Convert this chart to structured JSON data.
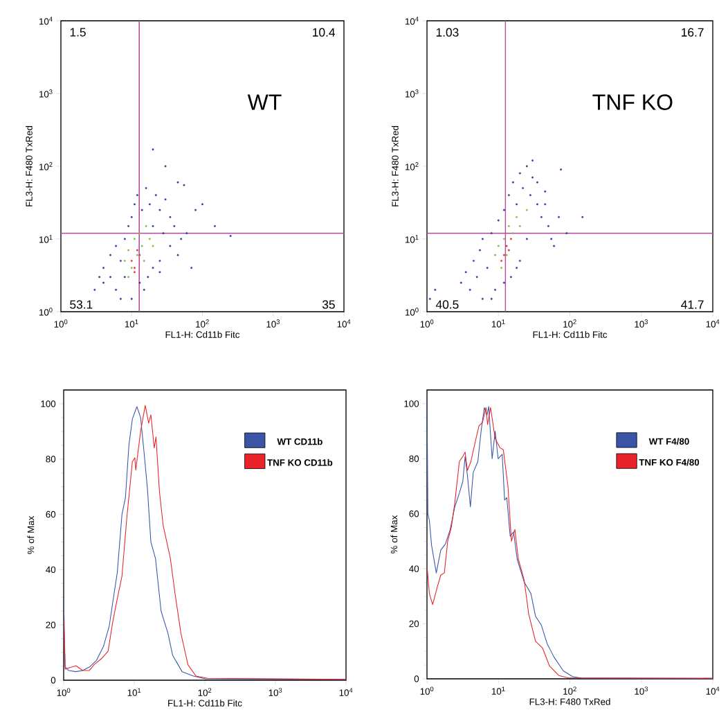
{
  "chart_data": [
    {
      "type": "scatter",
      "xlabel": "FL1-H: Cd11b Fitc",
      "ylabel": "FL3-H: F480 TxRed",
      "log": "xy",
      "grid": false,
      "legend": false,
      "marker": "circle",
      "xlim": [
        1,
        10000
      ],
      "ylim": [
        1,
        10000
      ],
      "xticks": [
        {
          "value": 1,
          "label": "10$^{0}$"
        },
        {
          "value": 10,
          "label": "10$^{1}$"
        },
        {
          "value": 100,
          "label": "10$^{2}$"
        },
        {
          "value": 1000,
          "label": "10$^{3}$"
        },
        {
          "value": 10000,
          "label": "10$^{4}$"
        }
      ],
      "yticks": [
        {
          "value": 1,
          "label": "10$^{0}$"
        },
        {
          "value": 10,
          "label": "10$^{1}$"
        },
        {
          "value": 100,
          "label": "10$^{2}$"
        },
        {
          "value": 1000,
          "label": "10$^{3}$"
        },
        {
          "value": 10000,
          "label": "10$^{4}$"
        }
      ],
      "ref_lines": [
        {
          "axis": "x",
          "value": 12.8,
          "color": "#b84a9c"
        },
        {
          "axis": "y",
          "value": 12,
          "color": "#b84a9c"
        }
      ],
      "annotations": [
        "1.5",
        "10.4",
        "53.1",
        "35",
        "WT"
      ],
      "series": [
        {
          "color": "#2a3f9d",
          "x": [
            3,
            3.5,
            4,
            4,
            5,
            5,
            6,
            6,
            7,
            7,
            8,
            8,
            9,
            10,
            10,
            11,
            12,
            14,
            15,
            16,
            18,
            20,
            22,
            25,
            25,
            28,
            30,
            35,
            35,
            40,
            45,
            50,
            60,
            70,
            80,
            100,
            150,
            250,
            20,
            30,
            45,
            55,
            13,
            17,
            20,
            25
          ],
          "values": [
            2,
            3,
            2.5,
            4,
            3,
            6,
            2,
            8,
            1.5,
            5,
            10,
            3,
            15,
            20,
            1.5,
            30,
            40,
            25,
            2,
            50,
            30,
            15,
            40,
            25,
            5,
            12,
            35,
            8,
            20,
            15,
            6,
            10,
            12,
            4,
            25,
            30,
            15,
            11,
            170,
            100,
            60,
            55,
            2.5,
            3,
            4,
            3.5
          ]
        },
        {
          "color": "#7ac143",
          "x": [
            8,
            9,
            10,
            11,
            12,
            13,
            14,
            16,
            18,
            9,
            15,
            20
          ],
          "values": [
            5,
            7,
            4,
            10,
            6,
            12,
            8,
            15,
            10,
            3,
            5,
            8
          ]
        },
        {
          "color": "#e8302a",
          "x": [
            10,
            11,
            12,
            13,
            11
          ],
          "values": [
            5,
            4,
            7,
            6,
            3.5
          ]
        }
      ]
    },
    {
      "type": "scatter",
      "xlabel": "FL1-H: Cd11b Fitc",
      "ylabel": "FL3-H: F480 TxRed",
      "log": "xy",
      "grid": false,
      "legend": false,
      "marker": "circle",
      "xlim": [
        1,
        10000
      ],
      "ylim": [
        1,
        10000
      ],
      "xticks": [
        {
          "value": 1,
          "label": "10$^{0}$"
        },
        {
          "value": 10,
          "label": "10$^{1}$"
        },
        {
          "value": 100,
          "label": "10$^{2}$"
        },
        {
          "value": 1000,
          "label": "10$^{3}$"
        },
        {
          "value": 10000,
          "label": "10$^{4}$"
        }
      ],
      "yticks": [
        {
          "value": 1,
          "label": "10$^{0}$"
        },
        {
          "value": 10,
          "label": "10$^{1}$"
        },
        {
          "value": 100,
          "label": "10$^{2}$"
        },
        {
          "value": 1000,
          "label": "10$^{3}$"
        },
        {
          "value": 10000,
          "label": "10$^{4}$"
        }
      ],
      "ref_lines": [
        {
          "axis": "x",
          "value": 12.5,
          "color": "#b84a9c"
        },
        {
          "axis": "y",
          "value": 12,
          "color": "#b84a9c"
        }
      ],
      "annotations": [
        "1.03",
        "16.7",
        "40.5",
        "41.7",
        "TNF KO"
      ],
      "series": [
        {
          "color": "#2a3f9d",
          "x": [
            3,
            3.5,
            4,
            4.5,
            5,
            5.5,
            6,
            6,
            7,
            8,
            9,
            10,
            12,
            14,
            16,
            18,
            20,
            22,
            25,
            28,
            30,
            35,
            35,
            40,
            45,
            50,
            55,
            60,
            70,
            90,
            150,
            75,
            30,
            8,
            15,
            20,
            25,
            45,
            12,
            18,
            1.3,
            1.1
          ],
          "values": [
            2.5,
            3.5,
            2,
            5,
            3,
            7,
            1.5,
            10,
            4,
            12,
            2,
            18,
            25,
            40,
            60,
            30,
            80,
            50,
            100,
            40,
            70,
            30,
            60,
            20,
            45,
            15,
            10,
            8,
            20,
            12,
            20,
            90,
            120,
            1.5,
            3,
            5,
            10,
            30,
            2.5,
            4,
            2,
            1.5
          ]
        },
        {
          "color": "#7ac143",
          "x": [
            9,
            10,
            12,
            14,
            16,
            18,
            20,
            11,
            13,
            25
          ],
          "values": [
            6,
            8,
            10,
            15,
            12,
            20,
            15,
            4,
            6,
            25
          ]
        },
        {
          "color": "#e8302a",
          "x": [
            12,
            13,
            14,
            11,
            15
          ],
          "values": [
            6,
            8,
            7,
            5,
            10
          ]
        }
      ]
    },
    {
      "type": "line",
      "xlabel": "FL1-H: Cd11b Fitc",
      "ylabel": "% of Max",
      "log": "x",
      "grid": false,
      "legend": "top right",
      "marker": "none",
      "line_style": "solid",
      "xlim": [
        1,
        10000
      ],
      "ylim": [
        0,
        105
      ],
      "xticks": [
        {
          "value": 1,
          "label": "10$^{0}$"
        },
        {
          "value": 10,
          "label": "10$^{1}$"
        },
        {
          "value": 100,
          "label": "10$^{2}$"
        },
        {
          "value": 1000,
          "label": "10$^{3}$"
        },
        {
          "value": 10000,
          "label": "10$^{4}$"
        }
      ],
      "yticks": [
        0,
        20,
        40,
        60,
        80,
        100
      ],
      "series": [
        {
          "name": "WT CD11b",
          "color": "#3a55a8",
          "x": [
            1,
            1.05,
            1.18,
            1.48,
            1.86,
            2.33,
            2.92,
            3.66,
            4.42,
            4.95,
            5.75,
            6.7,
            7.5,
            8.4,
            9.4,
            10.9,
            12.3,
            13.7,
            15.4,
            17.2,
            20,
            24,
            30,
            35,
            47.6,
            69,
            101,
            10000
          ],
          "values": [
            30,
            4.8,
            3.5,
            3.1,
            3.5,
            4.8,
            7.2,
            12.2,
            19.6,
            28,
            39,
            60,
            66,
            85,
            94.5,
            99,
            95,
            83,
            69,
            50,
            44,
            25,
            17,
            9,
            3.1,
            1.5,
            0.5,
            0.3
          ]
        },
        {
          "name": "TNF KO CD11b",
          "color": "#e8232a",
          "x": [
            1,
            1.05,
            1.2,
            1.5,
            1.86,
            2.3,
            2.7,
            3.4,
            4.26,
            4.95,
            5.75,
            6.7,
            7.8,
            9.4,
            10.2,
            10.5,
            12.3,
            14.3,
            16,
            17.2,
            19.2,
            20.3,
            22.8,
            25.7,
            32.5,
            38,
            45.8,
            57.6,
            74.8,
            110,
            10000
          ],
          "values": [
            22,
            4,
            4.5,
            5.2,
            3.5,
            3.5,
            5.6,
            7.7,
            10.5,
            21,
            29.5,
            37.7,
            58,
            79,
            80.5,
            76,
            90,
            99.4,
            93,
            96,
            84,
            88,
            68,
            56,
            44,
            31,
            17,
            5.6,
            1.5,
            0.7,
            0.3
          ]
        }
      ]
    },
    {
      "type": "line",
      "xlabel": "FL3-H: F480 TxRed",
      "ylabel": "% of Max",
      "log": "x",
      "grid": false,
      "legend": "top right",
      "marker": "none",
      "line_style": "solid",
      "xlim": [
        1,
        10000
      ],
      "ylim": [
        0,
        105
      ],
      "xticks": [
        {
          "value": 1,
          "label": "10$^{0}$"
        },
        {
          "value": 10,
          "label": "10$^{1}$"
        },
        {
          "value": 100,
          "label": "10$^{2}$"
        },
        {
          "value": 1000,
          "label": "10$^{3}$"
        },
        {
          "value": 10000,
          "label": "10$^{4}$"
        }
      ],
      "yticks": [
        0,
        20,
        40,
        60,
        80,
        100
      ],
      "series": [
        {
          "name": "WT F4/80",
          "color": "#3a55a8",
          "x": [
            1,
            1.03,
            1.08,
            1.16,
            1.35,
            1.56,
            1.81,
            2.1,
            2.45,
            2.84,
            3.17,
            3.42,
            3.68,
            4.05,
            4.44,
            5.15,
            5.76,
            6.35,
            6.9,
            7.3,
            8.17,
            9,
            9.9,
            11.3,
            12.2,
            13.1,
            14.6,
            16.3,
            18.3,
            22.9,
            28.5,
            33,
            39.9,
            48,
            60,
            81,
            109,
            147,
            10000
          ],
          "values": [
            104,
            60,
            57.6,
            48.5,
            38.5,
            46.8,
            49,
            54,
            62.5,
            67.5,
            71.7,
            80.8,
            74,
            62.5,
            75,
            79,
            90.7,
            98.6,
            95.7,
            99,
            80,
            90,
            80,
            81.6,
            65,
            65.9,
            51.8,
            53.4,
            43.5,
            35.2,
            31,
            22.8,
            19.5,
            12.8,
            7.9,
            2.9,
            0.8,
            0.25,
            0.2
          ]
        },
        {
          "name": "TNF KO F4/80",
          "color": "#e8232a",
          "x": [
            1.01,
            1.08,
            1.2,
            1.4,
            1.56,
            1.75,
            1.95,
            2.19,
            2.45,
            2.84,
            3.17,
            3.42,
            3.68,
            4.12,
            4.78,
            5.35,
            5.98,
            6.7,
            7.04,
            7.75,
            9,
            10.5,
            11.7,
            13.6,
            15.2,
            17,
            19,
            22.9,
            26.5,
            33,
            41.4,
            52,
            70,
            94,
            10000
          ],
          "values": [
            40,
            31,
            27,
            33.5,
            37.7,
            38.5,
            50,
            55,
            64,
            79,
            80.8,
            82.4,
            75.8,
            79,
            86.6,
            92,
            93.2,
            98.6,
            92.4,
            98.6,
            87.4,
            84,
            83.3,
            70,
            50,
            54.3,
            43.5,
            36,
            23.6,
            13.7,
            11.2,
            4.6,
            1.2,
            0.4,
            0.2
          ]
        }
      ]
    }
  ]
}
